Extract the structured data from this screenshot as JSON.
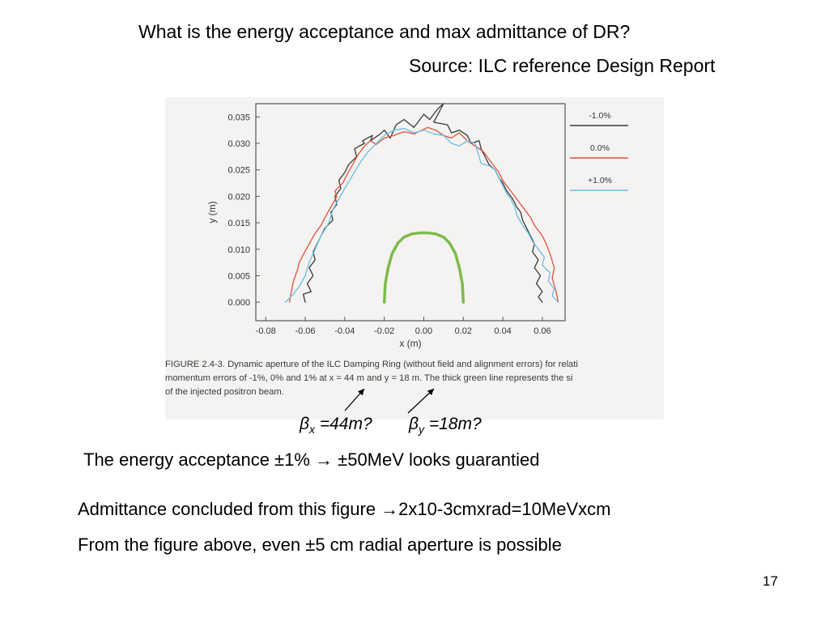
{
  "slide": {
    "title": "What is the energy acceptance and max admittance of DR?",
    "source": "Source: ILC reference Design Report",
    "beta_x": {
      "symbol": "β",
      "sub": "x",
      "value": " =44m?"
    },
    "beta_y": {
      "symbol": "β",
      "sub": "y",
      "value": " =18m?"
    },
    "line1": "The energy acceptance ±1% → ±50MeV looks guarantied",
    "line2": "Admittance concluded from this figure →2x10-3cmxrad=10MeVxcm",
    "line3": "From the figure above, even ±5 cm radial aperture is possible",
    "page_number": "17"
  },
  "figure": {
    "caption_lines": [
      "FIGURE 2.4-3.  Dynamic aperture of the ILC Damping Ring (without field and alignment errors) for relati",
      "momentum errors of -1%, 0% and 1% at x = 44 m and y = 18 m.  The thick green line represents the si",
      "of the injected positron beam."
    ]
  },
  "chart_data": {
    "type": "line",
    "xlabel": "x (m)",
    "ylabel": "y (m)",
    "xlim": [
      -0.085,
      0.0715
    ],
    "ylim": [
      -0.0035,
      0.0375
    ],
    "xticks": [
      "-0.08",
      "-0.06",
      "-0.04",
      "-0.02",
      "0.00",
      "0.02",
      "0.04",
      "0.06"
    ],
    "xtick_values": [
      -0.08,
      -0.06,
      -0.04,
      -0.02,
      0.0,
      0.02,
      0.04,
      0.06
    ],
    "yticks": [
      "0.000",
      "0.005",
      "0.010",
      "0.015",
      "0.020",
      "0.025",
      "0.030",
      "0.035"
    ],
    "ytick_values": [
      0.0,
      0.005,
      0.01,
      0.015,
      0.02,
      0.025,
      0.03,
      0.035
    ],
    "legend_position": "right",
    "series": [
      {
        "name": "-1.0%",
        "color": "#3a3a3a",
        "x": [
          -0.06,
          -0.061,
          -0.057,
          -0.059,
          -0.056,
          -0.058,
          -0.055,
          -0.056,
          -0.054,
          -0.052,
          -0.05,
          -0.046,
          -0.047,
          -0.044,
          -0.045,
          -0.042,
          -0.043,
          -0.04,
          -0.038,
          -0.034,
          -0.035,
          -0.03,
          -0.031,
          -0.026,
          -0.027,
          -0.022,
          -0.02,
          -0.017,
          -0.014,
          -0.01,
          -0.005,
          -0.0,
          0.003,
          0.007,
          0.01,
          0.005,
          0.012,
          0.014,
          0.018,
          0.022,
          0.024,
          0.028,
          0.029,
          0.031,
          0.033,
          0.036,
          0.038,
          0.04,
          0.042,
          0.045,
          0.047,
          0.049,
          0.05,
          0.052,
          0.054,
          0.056,
          0.055,
          0.058,
          0.056,
          0.059,
          0.057,
          0.06,
          0.058,
          0.06
        ],
        "y": [
          0.0,
          0.0015,
          0.002,
          0.0035,
          0.005,
          0.0065,
          0.008,
          0.0095,
          0.011,
          0.0125,
          0.014,
          0.0155,
          0.017,
          0.0185,
          0.02,
          0.0215,
          0.023,
          0.0245,
          0.026,
          0.0275,
          0.029,
          0.03,
          0.0305,
          0.0315,
          0.0305,
          0.0318,
          0.0325,
          0.031,
          0.0335,
          0.0345,
          0.033,
          0.0355,
          0.0345,
          0.0365,
          0.0375,
          0.034,
          0.0335,
          0.032,
          0.0325,
          0.0315,
          0.03,
          0.0305,
          0.029,
          0.0275,
          0.026,
          0.025,
          0.0235,
          0.0225,
          0.021,
          0.0195,
          0.018,
          0.017,
          0.0155,
          0.014,
          0.0125,
          0.011,
          0.0095,
          0.008,
          0.0065,
          0.005,
          0.0035,
          0.002,
          0.001,
          0.0
        ]
      },
      {
        "name": "0.0%",
        "color": "#e0513f",
        "x": [
          -0.068,
          -0.067,
          -0.066,
          -0.064,
          -0.063,
          -0.061,
          -0.058,
          -0.055,
          -0.052,
          -0.05,
          -0.047,
          -0.044,
          -0.045,
          -0.041,
          -0.039,
          -0.036,
          -0.033,
          -0.03,
          -0.027,
          -0.024,
          -0.02,
          -0.015,
          -0.01,
          -0.005,
          0.002,
          0.006,
          0.01,
          0.014,
          0.018,
          0.022,
          0.026,
          0.03,
          0.033,
          0.036,
          0.038,
          0.04,
          0.043,
          0.046,
          0.048,
          0.051,
          0.054,
          0.056,
          0.06,
          0.062,
          0.064,
          0.066,
          0.065,
          0.067,
          0.068
        ],
        "y": [
          0.0,
          0.002,
          0.004,
          0.006,
          0.0075,
          0.009,
          0.011,
          0.013,
          0.0145,
          0.016,
          0.018,
          0.02,
          0.021,
          0.0225,
          0.024,
          0.026,
          0.028,
          0.0295,
          0.0305,
          0.0298,
          0.031,
          0.0315,
          0.0322,
          0.0318,
          0.033,
          0.0325,
          0.0315,
          0.031,
          0.032,
          0.0305,
          0.0295,
          0.0285,
          0.027,
          0.0255,
          0.0245,
          0.023,
          0.0215,
          0.02,
          0.019,
          0.0175,
          0.016,
          0.0145,
          0.0125,
          0.011,
          0.009,
          0.0065,
          0.0045,
          0.002,
          0.0
        ]
      },
      {
        "name": "+1.0%",
        "color": "#68bfe4",
        "x": [
          -0.07,
          -0.066,
          -0.063,
          -0.06,
          -0.058,
          -0.055,
          -0.052,
          -0.048,
          -0.046,
          -0.043,
          -0.04,
          -0.036,
          -0.032,
          -0.028,
          -0.024,
          -0.02,
          -0.015,
          -0.01,
          -0.005,
          0.0,
          0.005,
          0.01,
          0.014,
          0.018,
          0.022,
          0.026,
          0.029,
          0.033,
          0.036,
          0.038,
          0.04,
          0.042,
          0.044,
          0.046,
          0.047,
          0.05,
          0.053,
          0.055,
          0.058,
          0.061,
          0.06,
          0.064,
          0.063,
          0.066,
          0.065,
          0.068
        ],
        "y": [
          0.0,
          0.0015,
          0.003,
          0.005,
          0.0075,
          0.01,
          0.0125,
          0.015,
          0.0175,
          0.0195,
          0.0215,
          0.024,
          0.0265,
          0.0285,
          0.03,
          0.0315,
          0.0325,
          0.0328,
          0.032,
          0.0325,
          0.0318,
          0.0315,
          0.03,
          0.0295,
          0.0305,
          0.03,
          0.0262,
          0.0258,
          0.025,
          0.0235,
          0.022,
          0.0205,
          0.0195,
          0.018,
          0.0165,
          0.0145,
          0.013,
          0.0115,
          0.01,
          0.0085,
          0.007,
          0.0055,
          0.004,
          0.0025,
          0.0012,
          0.0
        ]
      },
      {
        "name": "",
        "color": "#7dba4a",
        "x": [
          -0.02,
          -0.0195,
          -0.018,
          -0.016,
          -0.013,
          -0.01,
          -0.006,
          -0.002,
          0.0,
          0.002,
          0.006,
          0.01,
          0.013,
          0.016,
          0.018,
          0.0195,
          0.02
        ],
        "y": [
          0.0,
          0.0035,
          0.0065,
          0.0092,
          0.0112,
          0.0123,
          0.0129,
          0.0131,
          0.0131,
          0.0131,
          0.0129,
          0.0123,
          0.0112,
          0.0092,
          0.0065,
          0.0035,
          0.0
        ]
      }
    ]
  }
}
